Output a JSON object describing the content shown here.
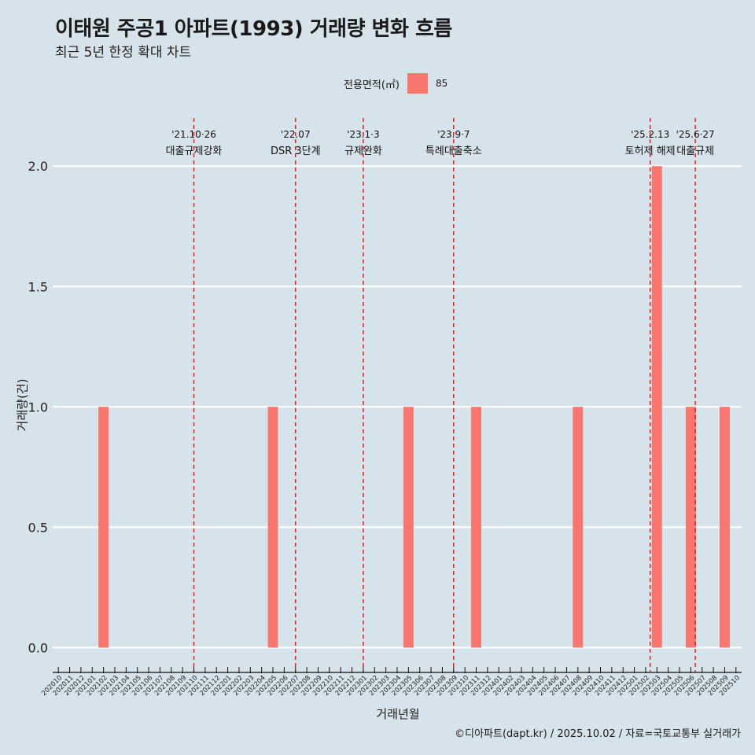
{
  "title": "이태원 주공1 아파트(1993) 거래량 변화 흐름",
  "subtitle": "최근 5년 한정 확대 차트",
  "caption": "©디아파트(dapt.kr) / 2025.10.02 / 자료=국토교통부 실거래가",
  "legend": {
    "title": "전용면적(㎡)",
    "items": [
      {
        "label": "85",
        "color": "#f8766d"
      }
    ]
  },
  "chart_data": {
    "type": "bar",
    "title": "이태원 주공1 아파트(1993) 거래량 변화 흐름",
    "xlabel": "거래년월",
    "ylabel": "거래량(건)",
    "ylim": [
      -0.1,
      2.2
    ],
    "yticks": [
      0.0,
      0.5,
      1.0,
      1.5,
      2.0
    ],
    "ytick_labels": [
      "0.0",
      "0.5",
      "1.0",
      "1.5",
      "2.0"
    ],
    "grid": true,
    "legend_position": "top",
    "categories": [
      "202010",
      "202011",
      "202012",
      "202101",
      "202102",
      "202103",
      "202104",
      "202105",
      "202106",
      "202107",
      "202108",
      "202109",
      "202110",
      "202111",
      "202112",
      "202201",
      "202202",
      "202203",
      "202204",
      "202205",
      "202206",
      "202207",
      "202208",
      "202209",
      "202210",
      "202211",
      "202212",
      "202301",
      "202302",
      "202303",
      "202304",
      "202305",
      "202306",
      "202307",
      "202308",
      "202309",
      "202310",
      "202311",
      "202312",
      "202401",
      "202402",
      "202403",
      "202404",
      "202405",
      "202406",
      "202407",
      "202408",
      "202409",
      "202410",
      "202411",
      "202412",
      "202501",
      "202502",
      "202503",
      "202504",
      "202505",
      "202506",
      "202507",
      "202508",
      "202509",
      "202510"
    ],
    "series": [
      {
        "name": "85",
        "color": "#f8766d",
        "values": [
          0,
          0,
          0,
          0,
          1,
          0,
          0,
          0,
          0,
          0,
          0,
          0,
          0,
          0,
          0,
          0,
          0,
          0,
          0,
          1,
          0,
          0,
          0,
          0,
          0,
          0,
          0,
          0,
          0,
          0,
          0,
          1,
          0,
          0,
          0,
          0,
          0,
          1,
          0,
          0,
          0,
          0,
          0,
          0,
          0,
          0,
          1,
          0,
          0,
          0,
          0,
          0,
          0,
          2,
          0,
          0,
          1,
          0,
          0,
          1,
          0
        ]
      }
    ],
    "annotations": [
      {
        "x": 12.0,
        "date": "'21.10·26",
        "label": "대출규제강화"
      },
      {
        "x": 21.0,
        "date": "'22.07",
        "label": "DSR 3단계"
      },
      {
        "x": 27.0,
        "date": "'23.1·3",
        "label": "규제완화"
      },
      {
        "x": 35.0,
        "date": "'23.9·7",
        "label": "특례대출축소"
      },
      {
        "x": 52.4,
        "date": "'25.2.13",
        "label": "토허제 해제"
      },
      {
        "x": 56.4,
        "date": "'25.6·27",
        "label": "대출규제"
      }
    ]
  }
}
